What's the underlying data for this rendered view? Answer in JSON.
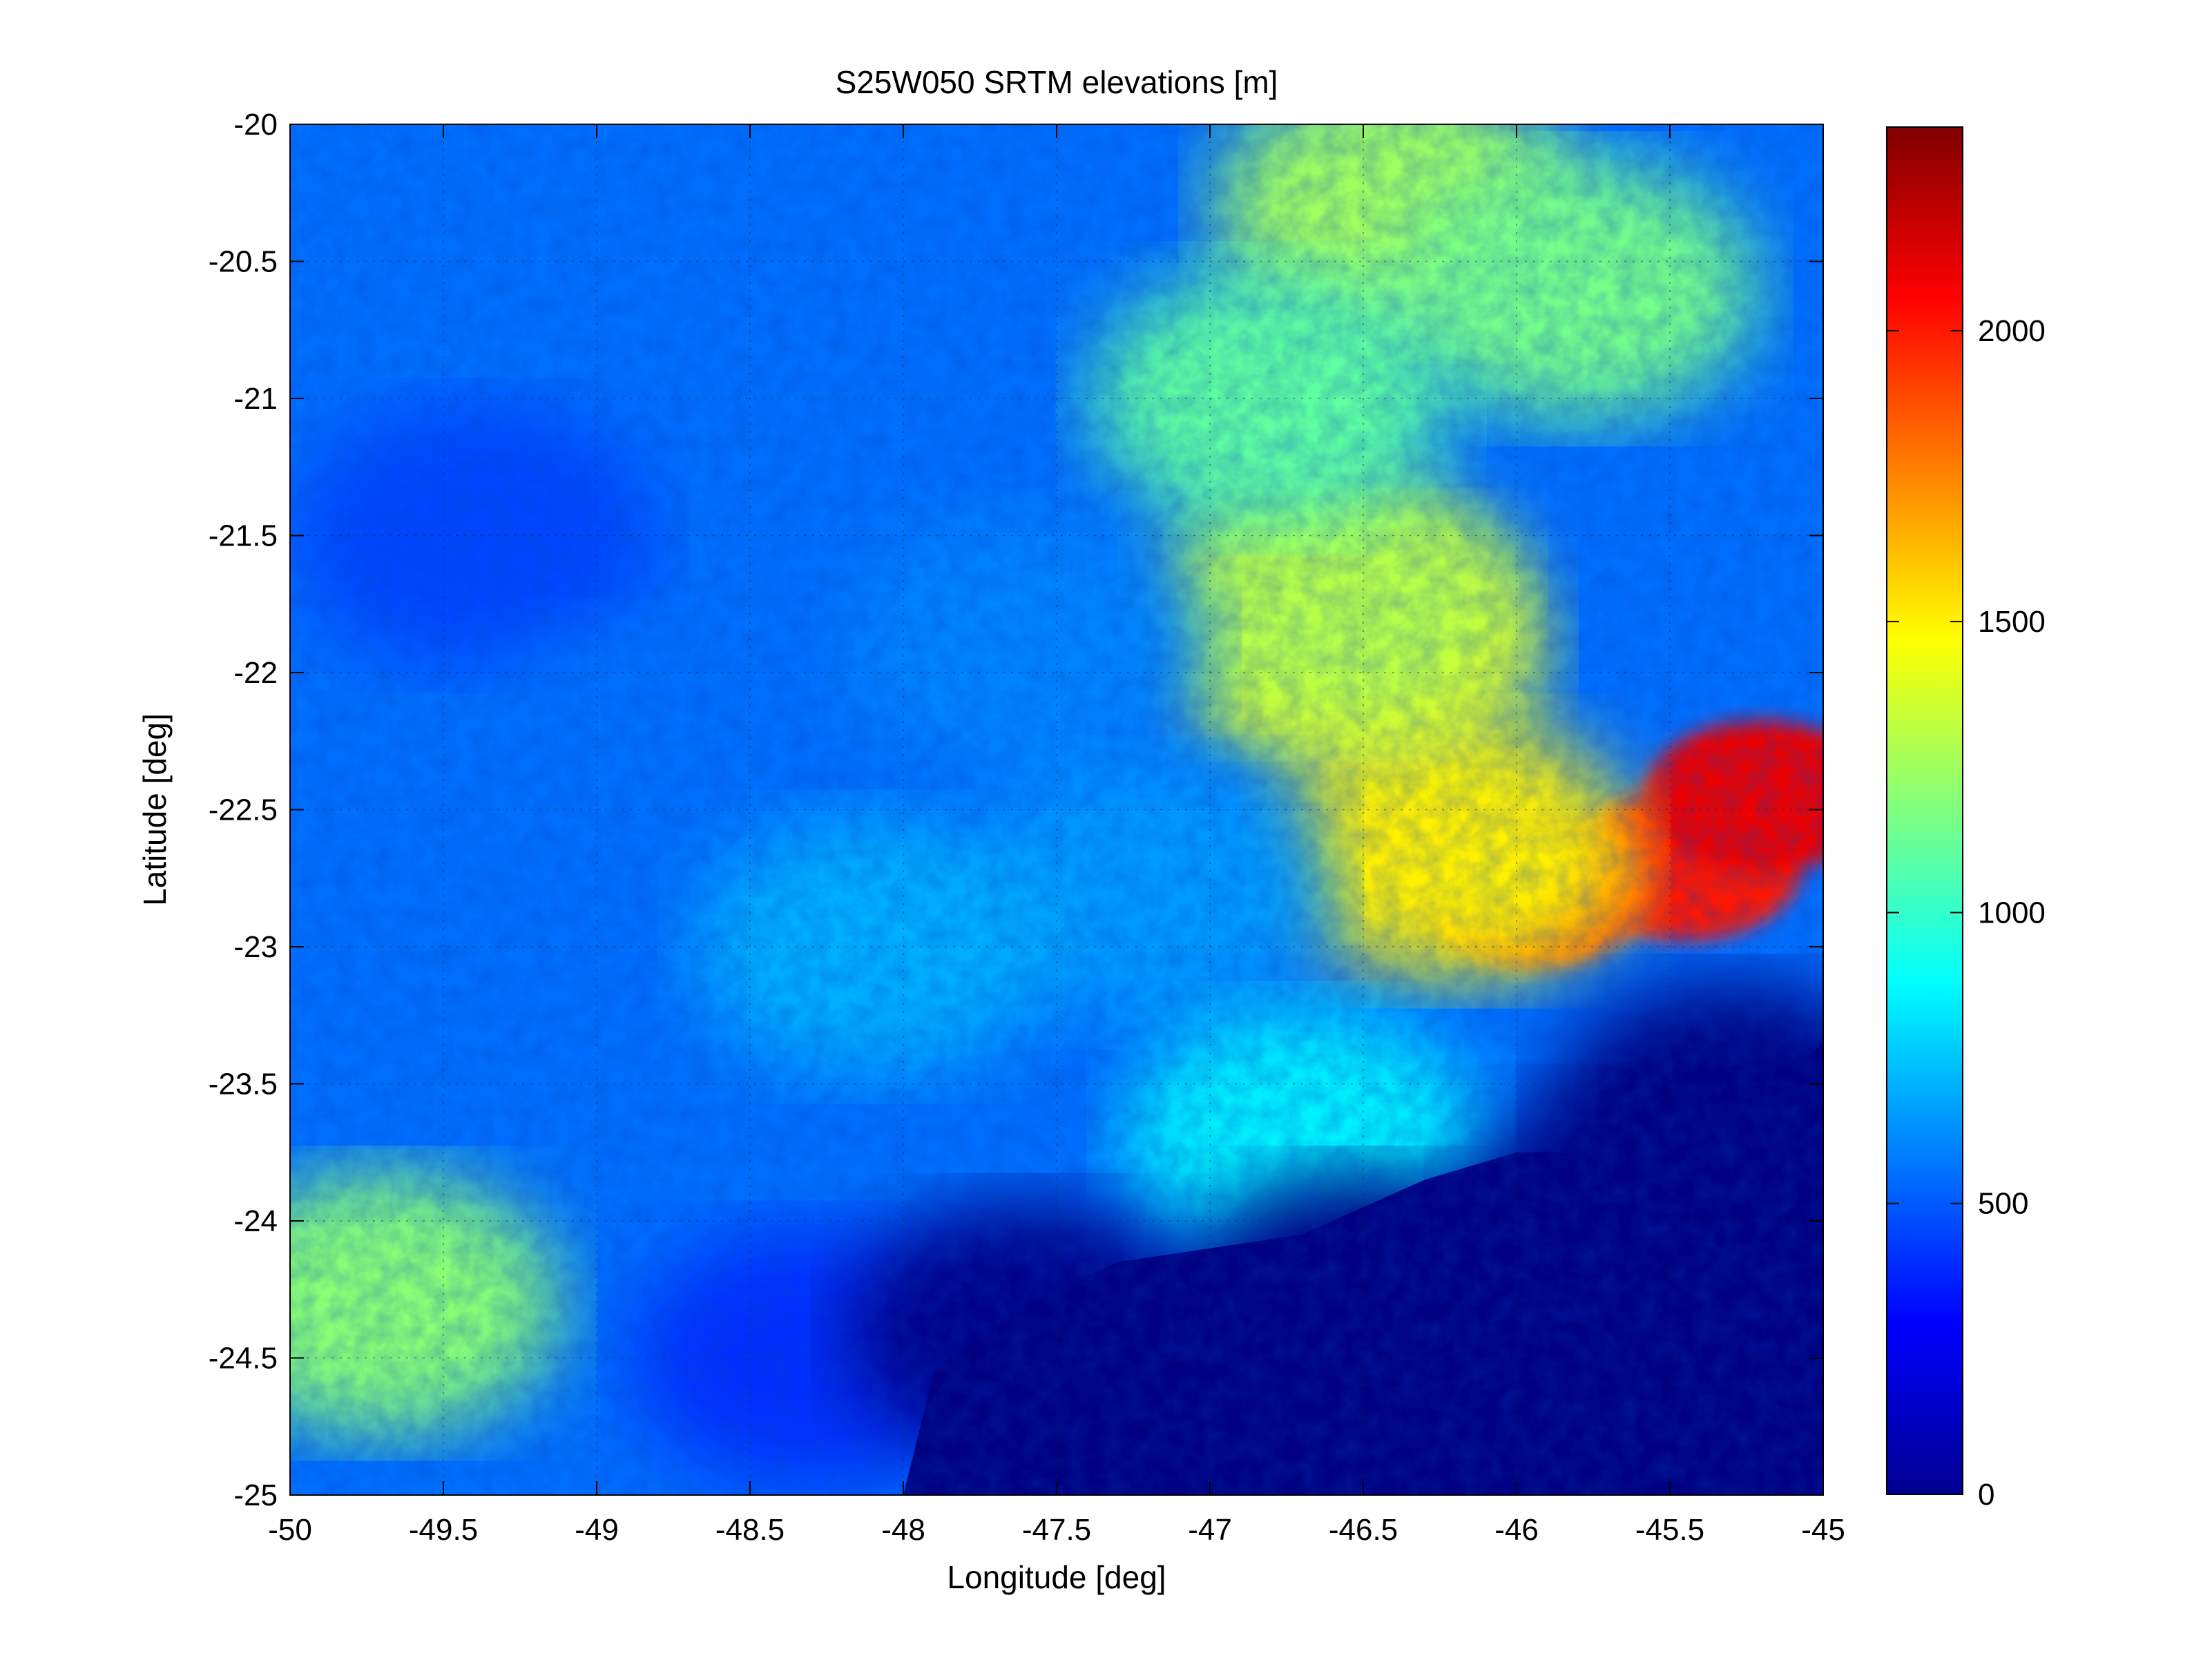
{
  "chart_data": {
    "type": "heatmap",
    "title": "S25W050 SRTM elevations [m]",
    "xlabel": "Longitude [deg]",
    "ylabel": "Latitude [deg]",
    "xlim": [
      -50,
      -45
    ],
    "ylim": [
      -25,
      -20
    ],
    "x_ticks": [
      -50,
      -49.5,
      -49,
      -48.5,
      -48,
      -47.5,
      -47,
      -46.5,
      -46,
      -45.5,
      -45
    ],
    "x_tick_labels": [
      "-50",
      "-49.5",
      "-49",
      "-48.5",
      "-48",
      "-47.5",
      "-47",
      "-46.5",
      "-46",
      "-45.5",
      "-45"
    ],
    "y_ticks": [
      -20,
      -20.5,
      -21,
      -21.5,
      -22,
      -22.5,
      -23,
      -23.5,
      -24,
      -24.5,
      -25
    ],
    "y_tick_labels": [
      "-20",
      "-20.5",
      "-21",
      "-21.5",
      "-22",
      "-22.5",
      "-23",
      "-23.5",
      "-24",
      "-24.5",
      "-25"
    ],
    "grid": true,
    "colormap": "jet",
    "colorbar": {
      "range": [
        0,
        2350
      ],
      "ticks": [
        0,
        500,
        1000,
        1500,
        2000
      ],
      "tick_labels": [
        "0",
        "500",
        "1000",
        "1500",
        "2000"
      ],
      "location": "right"
    },
    "elevation_features": [
      {
        "lon": -45.45,
        "lat": -22.7,
        "elevation": 2000
      },
      {
        "lon": -45.2,
        "lat": -22.45,
        "elevation": 2100
      },
      {
        "lon": -45.95,
        "lat": -22.8,
        "elevation": 1900
      },
      {
        "lon": -46.2,
        "lat": -22.65,
        "elevation": 1500
      },
      {
        "lon": -46.5,
        "lat": -21.9,
        "elevation": 1450
      },
      {
        "lon": -46.6,
        "lat": -21.75,
        "elevation": 1300
      },
      {
        "lon": -46.4,
        "lat": -20.3,
        "elevation": 1250
      },
      {
        "lon": -45.8,
        "lat": -20.6,
        "elevation": 1150
      },
      {
        "lon": -49.7,
        "lat": -24.3,
        "elevation": 1200
      },
      {
        "lon": -46.8,
        "lat": -21.0,
        "elevation": 1100
      },
      {
        "lon": -49.4,
        "lat": -21.5,
        "elevation": 450
      },
      {
        "lon": -48.8,
        "lat": -22.3,
        "elevation": 550
      },
      {
        "lon": -47.6,
        "lat": -21.9,
        "elevation": 600
      },
      {
        "lon": -47.2,
        "lat": -22.8,
        "elevation": 650
      },
      {
        "lon": -48.1,
        "lat": -23.0,
        "elevation": 700
      },
      {
        "lon": -46.7,
        "lat": -23.7,
        "elevation": 850
      },
      {
        "lon": -48.3,
        "lat": -24.5,
        "elevation": 400
      },
      {
        "lon": -47.6,
        "lat": -24.4,
        "elevation": 20
      },
      {
        "lon": -46.5,
        "lat": -24.3,
        "elevation": 0
      },
      {
        "lon": -45.6,
        "lat": -24.0,
        "elevation": 0
      },
      {
        "lon": -45.3,
        "lat": -23.6,
        "elevation": 0
      }
    ],
    "coastline": [
      [
        -48.0,
        -25.0
      ],
      [
        -47.9,
        -24.55
      ],
      [
        -47.6,
        -24.3
      ],
      [
        -47.3,
        -24.15
      ],
      [
        -47.0,
        -24.1
      ],
      [
        -46.7,
        -24.05
      ],
      [
        -46.5,
        -23.95
      ],
      [
        -46.3,
        -23.85
      ],
      [
        -46.0,
        -23.75
      ],
      [
        -45.8,
        -23.75
      ],
      [
        -45.6,
        -23.65
      ],
      [
        -45.3,
        -23.55
      ],
      [
        -45.1,
        -23.45
      ],
      [
        -45.0,
        -23.35
      ]
    ]
  }
}
